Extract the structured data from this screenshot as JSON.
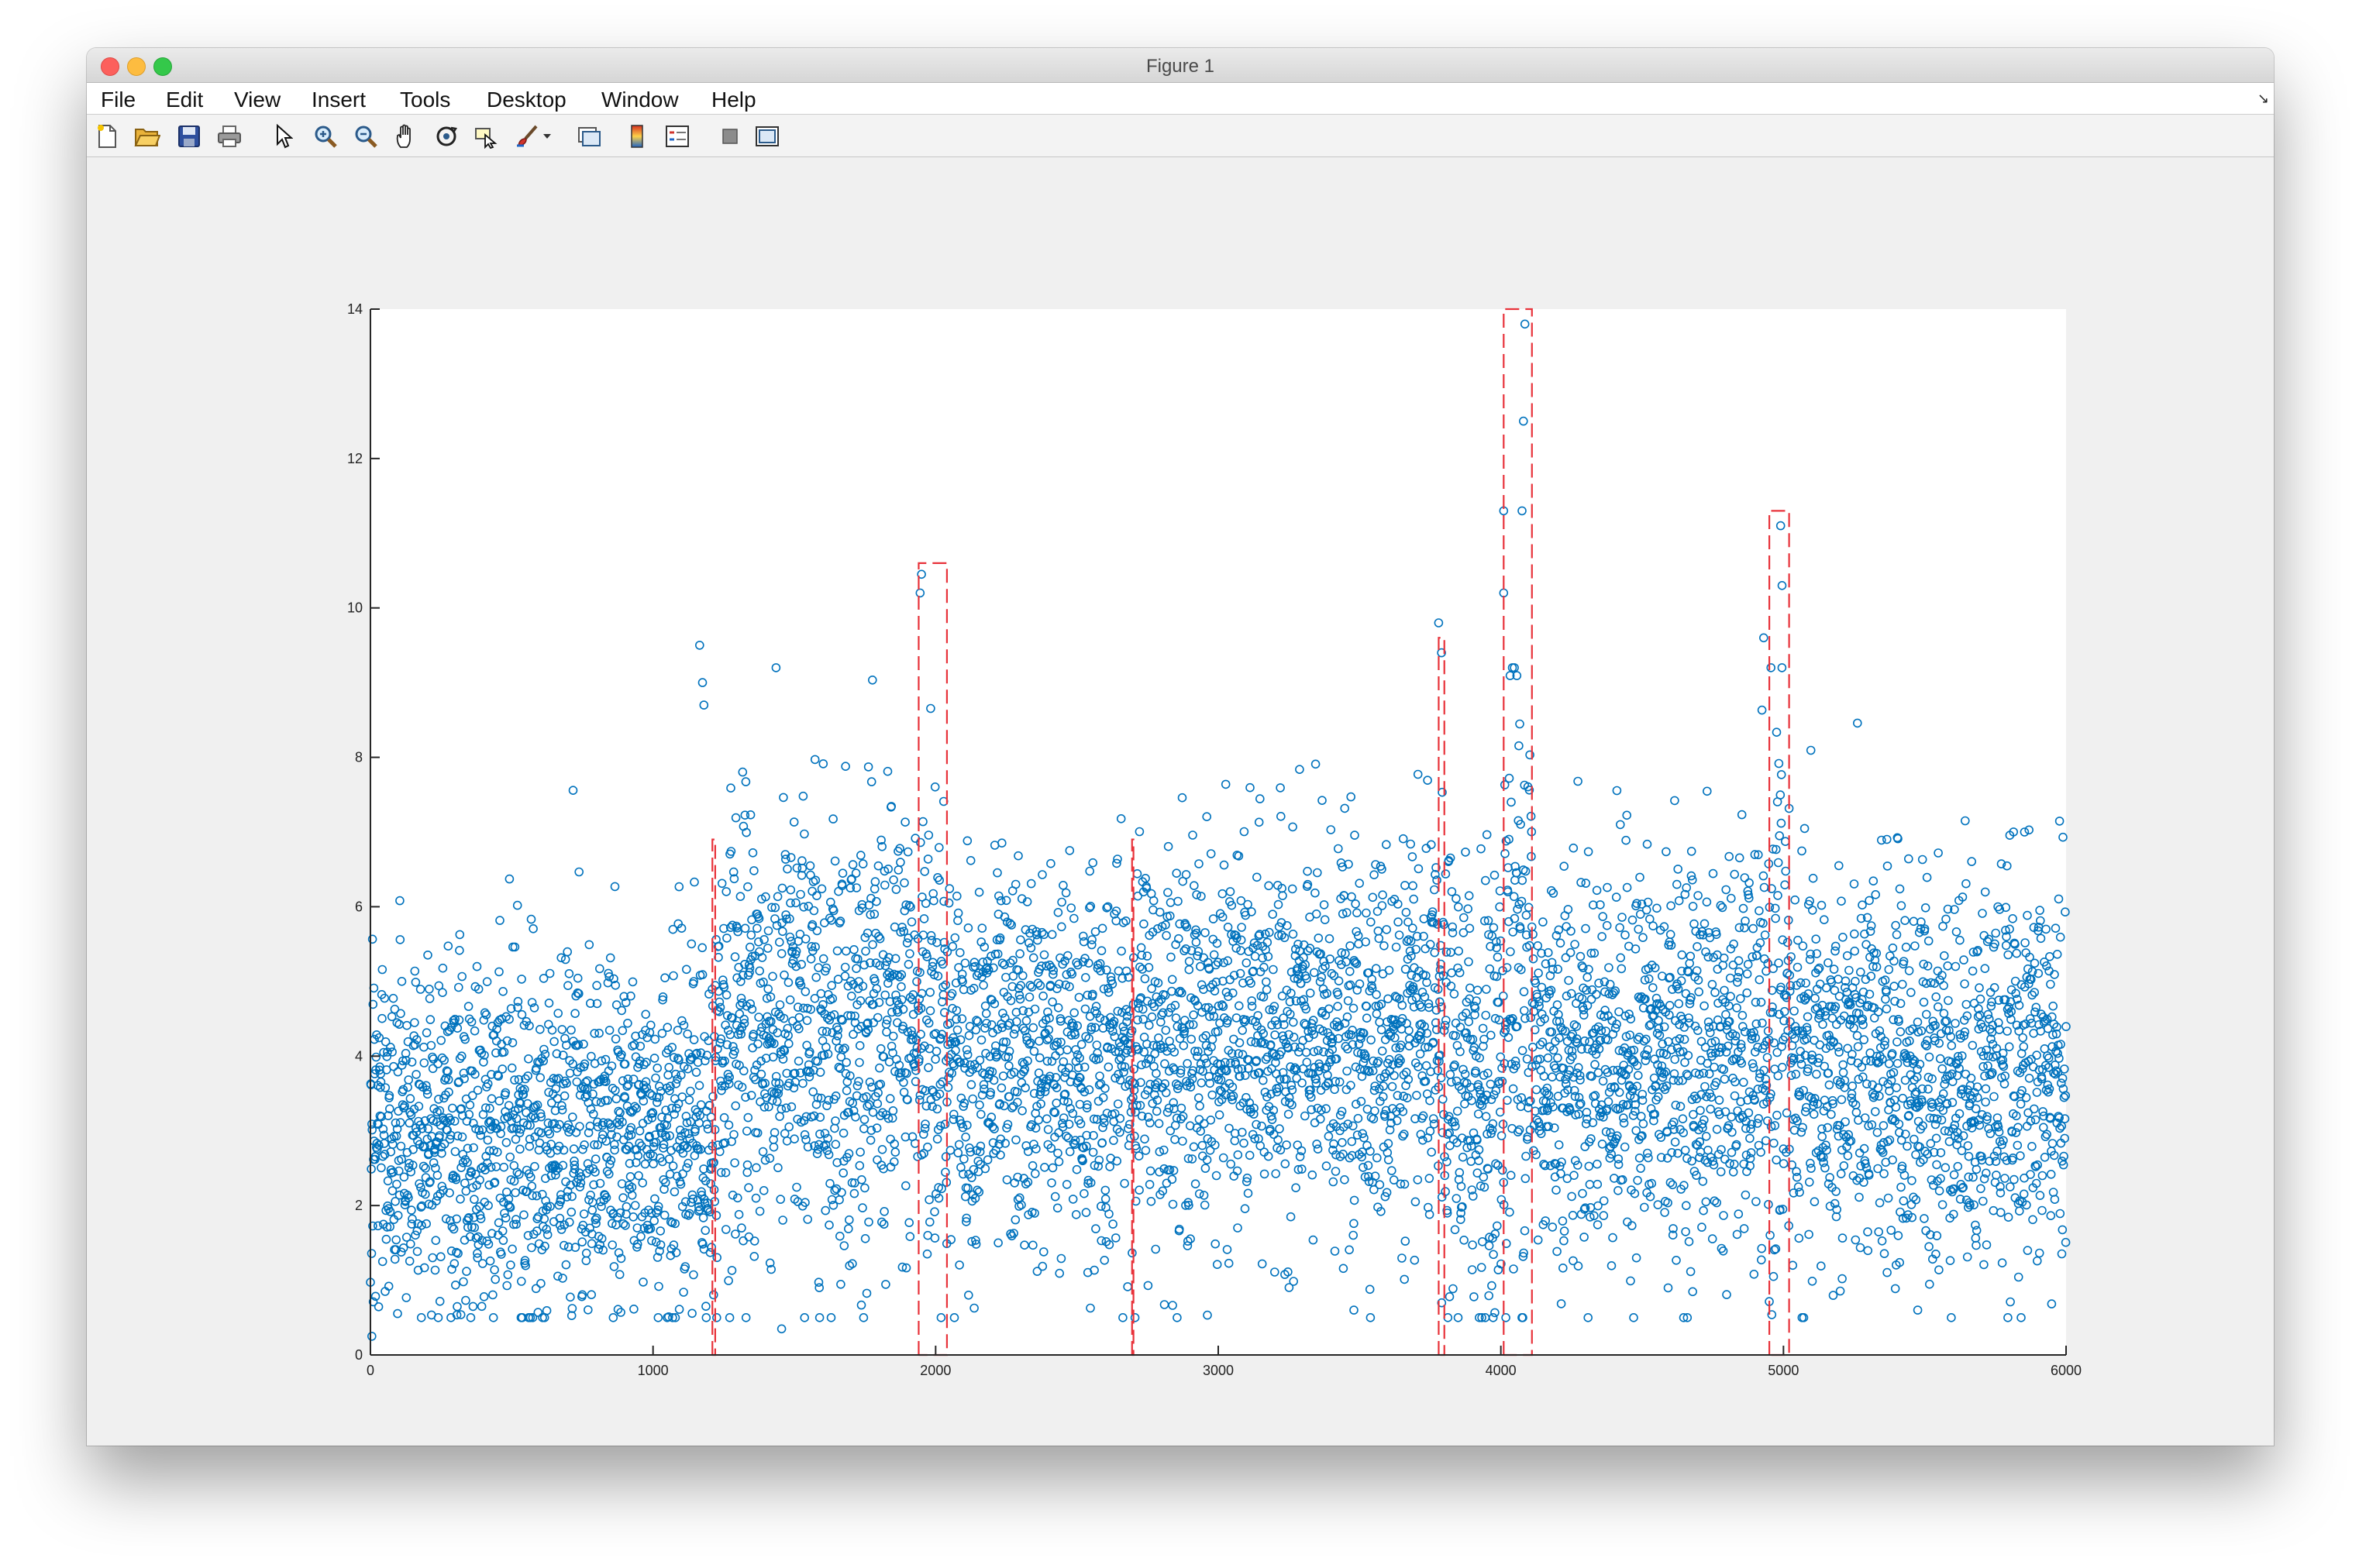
{
  "window": {
    "title": "Figure 1"
  },
  "menu": [
    "File",
    "Edit",
    "View",
    "Insert",
    "Tools",
    "Desktop",
    "Window",
    "Help"
  ],
  "toolbar": {
    "icons": [
      "new-figure-icon",
      "open-file-icon",
      "save-icon",
      "print-icon",
      "pointer-icon",
      "zoom-in-icon",
      "zoom-out-icon",
      "pan-icon",
      "rotate-3d-icon",
      "data-cursor-icon",
      "brush-icon",
      "brush-dropdown-icon",
      "link-plot-icon",
      "colorbar-icon",
      "legend-icon",
      "hide-plot-tools-icon",
      "show-plot-tools-icon"
    ]
  },
  "colors": {
    "marker": "#0072bd",
    "segment": "#e8323a"
  },
  "chart_data": {
    "type": "scatter",
    "title": "",
    "xlabel": "",
    "ylabel": "",
    "xlim": [
      0,
      6000
    ],
    "ylim": [
      0,
      14
    ],
    "x_ticks": [
      0,
      1000,
      2000,
      3000,
      4000,
      5000,
      6000
    ],
    "y_ticks": [
      0,
      2,
      4,
      6,
      8,
      10,
      12,
      14
    ],
    "grid": false,
    "point_count": 6000,
    "segments": [
      {
        "x": [
          1180,
          1230
        ],
        "mean": 3.0,
        "spread": 1.1
      },
      {
        "x": [
          1230,
          1950
        ],
        "mean": 4.3,
        "spread": 1.5
      },
      {
        "x": [
          1950,
          2040
        ],
        "mean": 4.6,
        "spread": 1.9
      },
      {
        "x": [
          2040,
          2700
        ],
        "mean": 3.9,
        "spread": 1.25
      },
      {
        "x": [
          2700,
          3790
        ],
        "mean": 4.2,
        "spread": 1.25
      },
      {
        "x": [
          3790,
          4010
        ],
        "mean": 3.6,
        "spread": 1.5
      },
      {
        "x": [
          4010,
          4110
        ],
        "mean": 5.2,
        "spread": 2.2
      },
      {
        "x": [
          4110,
          4950
        ],
        "mean": 4.0,
        "spread": 1.3
      },
      {
        "x": [
          4950,
          5020
        ],
        "mean": 4.7,
        "spread": 2.0
      },
      {
        "x": [
          5020,
          6000
        ],
        "mean": 3.8,
        "spread": 1.3
      }
    ],
    "baseline": {
      "x": [
        0,
        1180
      ],
      "mean": 3.0,
      "spread": 1.2
    },
    "change_boxes": [
      {
        "x": [
          1210,
          1220
        ],
        "y": [
          0,
          6.9
        ]
      },
      {
        "x": [
          1940,
          2040
        ],
        "y": [
          0,
          10.6
        ]
      },
      {
        "x": [
          2695,
          2700
        ],
        "y": [
          0,
          6.9
        ]
      },
      {
        "x": [
          3780,
          3800
        ],
        "y": [
          0,
          9.6
        ]
      },
      {
        "x": [
          4010,
          4110
        ],
        "y": [
          0,
          14
        ]
      },
      {
        "x": [
          4950,
          5020
        ],
        "y": [
          0,
          11.3
        ]
      }
    ],
    "outliers": [
      {
        "x": 5,
        "y": 0.25
      },
      {
        "x": 1165,
        "y": 9.5
      },
      {
        "x": 1175,
        "y": 9.0
      },
      {
        "x": 1180,
        "y": 8.7
      },
      {
        "x": 1950,
        "y": 10.45
      },
      {
        "x": 1945,
        "y": 10.2
      },
      {
        "x": 3780,
        "y": 9.8
      },
      {
        "x": 3790,
        "y": 9.4
      },
      {
        "x": 4010,
        "y": 11.3
      },
      {
        "x": 4010,
        "y": 10.2
      },
      {
        "x": 4085,
        "y": 13.8
      },
      {
        "x": 4080,
        "y": 12.5
      },
      {
        "x": 4075,
        "y": 11.3
      },
      {
        "x": 4990,
        "y": 11.1
      },
      {
        "x": 4995,
        "y": 10.3
      },
      {
        "x": 4930,
        "y": 9.6
      },
      {
        "x": 3480,
        "y": 0.6
      },
      {
        "x": 5475,
        "y": 0.6
      },
      {
        "x": 1455,
        "y": 0.35
      }
    ]
  }
}
